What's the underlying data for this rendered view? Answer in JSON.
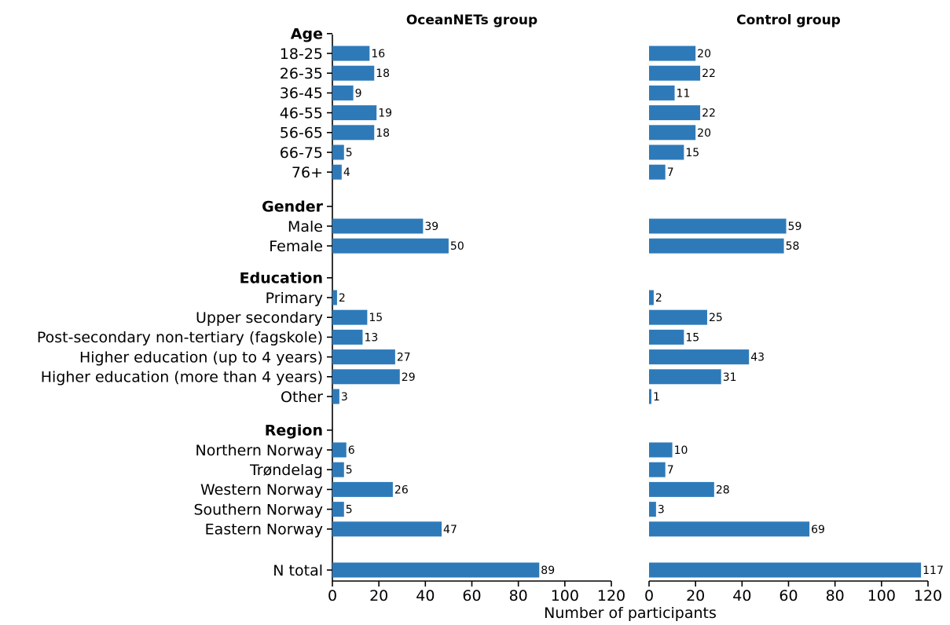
{
  "chart_data": {
    "type": "bar",
    "orientation": "horizontal",
    "xlabel": "Number of participants",
    "xlim": [
      0,
      120
    ],
    "xticks": [
      0,
      20,
      40,
      60,
      80,
      100,
      120
    ],
    "grid": false,
    "bar_color": "#2e7ab9",
    "panels": [
      {
        "title": "OceanNETs group"
      },
      {
        "title": "Control group"
      }
    ],
    "groups": [
      {
        "name": "Age",
        "categories": [
          "18-25",
          "26-35",
          "36-45",
          "46-55",
          "56-65",
          "66-75",
          "76+"
        ],
        "oceannets": [
          16,
          18,
          9,
          19,
          18,
          5,
          4
        ],
        "control": [
          20,
          22,
          11,
          22,
          20,
          15,
          7
        ]
      },
      {
        "name": "Gender",
        "categories": [
          "Male",
          "Female"
        ],
        "oceannets": [
          39,
          50
        ],
        "control": [
          59,
          58
        ]
      },
      {
        "name": "Education",
        "categories": [
          "Primary",
          "Upper secondary",
          "Post-secondary non-tertiary (fagskole)",
          "Higher education (up to 4 years)",
          "Higher education (more than 4 years)",
          "Other"
        ],
        "oceannets": [
          2,
          15,
          13,
          27,
          29,
          3
        ],
        "control": [
          2,
          25,
          15,
          43,
          31,
          1
        ]
      },
      {
        "name": "Region",
        "categories": [
          "Northern Norway",
          "Trøndelag",
          "Western Norway",
          "Southern Norway",
          "Eastern Norway"
        ],
        "oceannets": [
          6,
          5,
          26,
          5,
          47
        ],
        "control": [
          10,
          7,
          28,
          3,
          69
        ]
      },
      {
        "name": "",
        "categories": [
          "N total"
        ],
        "oceannets": [
          89
        ],
        "control": [
          117
        ]
      }
    ]
  }
}
